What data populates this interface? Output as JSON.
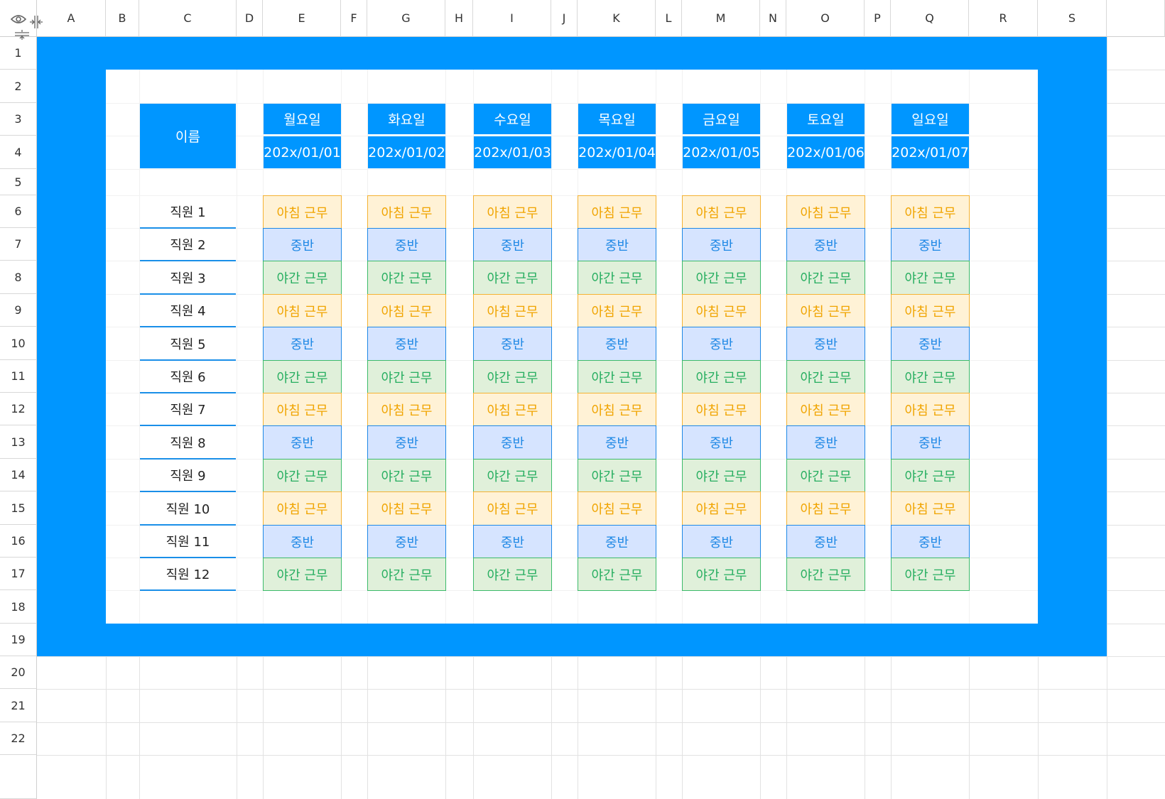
{
  "columns": [
    "A",
    "B",
    "C",
    "D",
    "E",
    "F",
    "G",
    "H",
    "I",
    "J",
    "K",
    "L",
    "M",
    "N",
    "O",
    "P",
    "Q",
    "R",
    "S"
  ],
  "rows": [
    "1",
    "2",
    "3",
    "4",
    "5",
    "6",
    "7",
    "8",
    "9",
    "10",
    "11",
    "12",
    "13",
    "14",
    "15",
    "16",
    "17",
    "18",
    "19",
    "20",
    "21",
    "22"
  ],
  "header": {
    "name_label": "이름",
    "days": [
      {
        "day": "월요일",
        "date": "202x/01/01"
      },
      {
        "day": "화요일",
        "date": "202x/01/02"
      },
      {
        "day": "수요일",
        "date": "202x/01/03"
      },
      {
        "day": "목요일",
        "date": "202x/01/04"
      },
      {
        "day": "금요일",
        "date": "202x/01/05"
      },
      {
        "day": "토요일",
        "date": "202x/01/06"
      },
      {
        "day": "일요일",
        "date": "202x/01/07"
      }
    ]
  },
  "employees": [
    "직원 1",
    "직원 2",
    "직원 3",
    "직원 4",
    "직원 5",
    "직원 6",
    "직원 7",
    "직원 8",
    "직원 9",
    "직원 10",
    "직원 11",
    "직원 12"
  ],
  "shift_pattern": [
    "morning",
    "mid",
    "night"
  ],
  "shift_types": {
    "morning": {
      "label": "아침 근무",
      "bg": "#fff2d6",
      "fg": "#f0a400",
      "border": "#f4b233"
    },
    "mid": {
      "label": "중반",
      "bg": "#d6e4ff",
      "fg": "#1e88e5",
      "border": "#1e88e5"
    },
    "night": {
      "label": "야간 근무",
      "bg": "#e0f0da",
      "fg": "#27ae60",
      "border": "#3cba6a"
    }
  },
  "colors": {
    "accent": "#0096ff"
  },
  "icons": [
    "eye-icon",
    "column-resize-icon",
    "row-resize-icon"
  ]
}
